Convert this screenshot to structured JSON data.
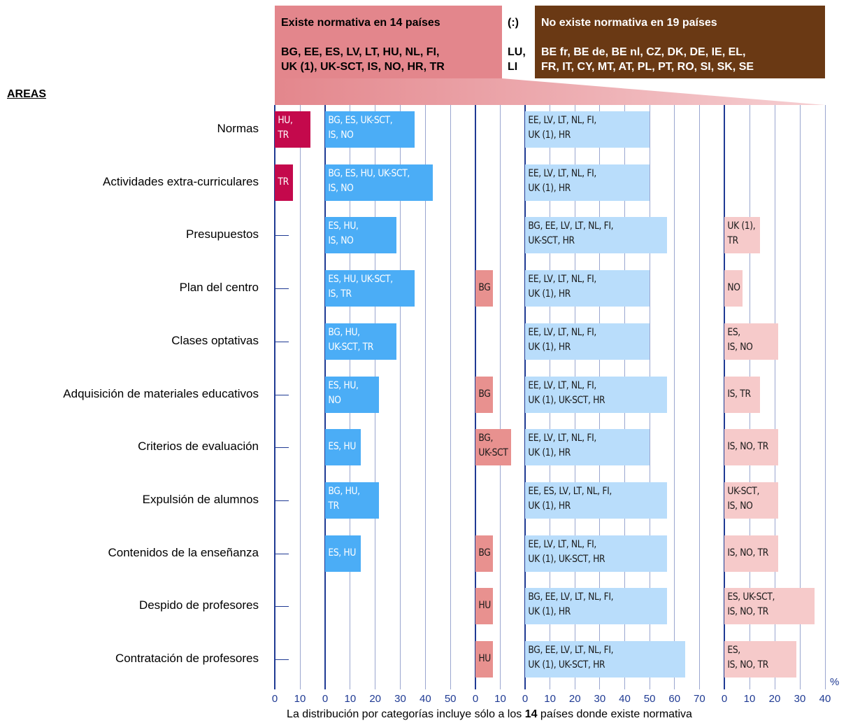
{
  "chart_data": {
    "type": "bar",
    "header": {
      "exists_title": "Existe normativa en 14 países",
      "exists_countries": "BG, EE, ES, LV, LT, HU, NL, FI,\nUK (1), UK-SCT, IS, NO, HR, TR",
      "missing_title": "(:)",
      "missing_countries": "LU,\nLI",
      "not_exists_title": "No existe normativa en 19 países",
      "not_exists_countries": "BE fr, BE de, BE nl, CZ, DK, DE, IE, EL,\nFR, IT, CY, MT, AT, PL, PT, RO, SI, SK, SE"
    },
    "axis_title": "AREAS",
    "unit": "%",
    "categories": [
      "Normas",
      "Actividades extra-curriculares",
      "Presupuestos",
      "Plan del centro",
      "Clases optativas",
      "Adquisición de materiales educativos",
      "Criterios de evaluación",
      "Expulsión de alumnos",
      "Contenidos de la enseñanza",
      "Despido de profesores",
      "Contratación de profesores"
    ],
    "panels": [
      {
        "color": "#c4094c",
        "text_color": "#ffffff",
        "xlim": [
          0,
          20
        ],
        "xticks": [
          0,
          10
        ],
        "values": [
          14.3,
          7.1,
          null,
          null,
          null,
          null,
          null,
          null,
          null,
          null,
          null
        ],
        "labels": [
          "HU,\nTR",
          "TR",
          null,
          null,
          null,
          null,
          null,
          null,
          null,
          null,
          null
        ]
      },
      {
        "color": "#4badf6",
        "text_color": "#ffffff",
        "xlim": [
          0,
          60
        ],
        "xticks": [
          0,
          10,
          20,
          30,
          40,
          50
        ],
        "values": [
          35.7,
          42.9,
          28.6,
          35.7,
          28.6,
          21.4,
          14.3,
          21.4,
          14.3,
          null,
          null
        ],
        "labels": [
          "BG, ES, UK-SCT,\nIS, NO",
          "BG, ES, HU, UK-SCT,\nIS, NO",
          "ES, HU,\nIS, NO",
          "ES, HU, UK-SCT,\nIS, TR",
          "BG, HU,\nUK-SCT, TR",
          "ES, HU,\nNO",
          "ES, HU",
          "BG, HU,\nTR",
          "ES, HU",
          null,
          null
        ]
      },
      {
        "color": "#e8918f",
        "text_color": "#1a1a1a",
        "xlim": [
          0,
          20
        ],
        "xticks": [
          0,
          10
        ],
        "values": [
          null,
          null,
          null,
          7.1,
          null,
          7.1,
          14.3,
          null,
          7.1,
          7.1,
          7.1
        ],
        "labels": [
          null,
          null,
          null,
          "BG",
          null,
          "BG",
          "BG,\nUK-SCT",
          null,
          "BG",
          "HU",
          "HU"
        ]
      },
      {
        "color": "#b9ddfb",
        "text_color": "#1a1a1a",
        "xlim": [
          0,
          80
        ],
        "xticks": [
          0,
          10,
          20,
          30,
          40,
          50,
          60,
          70
        ],
        "values": [
          50,
          50,
          57.1,
          50,
          50,
          57.1,
          50,
          57.1,
          57.1,
          57.1,
          64.3
        ],
        "labels": [
          "EE, LV, LT, NL, FI,\nUK (1), HR",
          "EE, LV, LT, NL, FI,\nUK (1), HR",
          "BG, EE, LV, LT, NL, FI,\nUK-SCT, HR",
          "EE, LV, LT, NL, FI,\nUK (1), HR",
          "EE, LV, LT, NL, FI,\nUK (1), HR",
          "EE, LV, LT, NL, FI,\nUK (1), UK-SCT, HR",
          "EE, LV, LT, NL, FI,\nUK (1), HR",
          "EE, ES, LV, LT, NL, FI,\nUK (1), HR",
          "EE, LV, LT, NL, FI,\nUK (1), UK-SCT, HR",
          "BG, EE, LV, LT, NL, FI,\nUK (1), HR",
          "BG, EE, LV, LT, NL, FI,\nUK (1), UK-SCT, HR"
        ]
      },
      {
        "color": "#f6caca",
        "text_color": "#1a1a1a",
        "xlim": [
          0,
          40
        ],
        "xticks": [
          0,
          10,
          20,
          30,
          40
        ],
        "values": [
          null,
          null,
          14.3,
          7.1,
          21.4,
          14.3,
          21.4,
          21.4,
          21.4,
          35.7,
          28.6
        ],
        "labels": [
          null,
          null,
          "UK (1),\nTR",
          "NO",
          "ES,\nIS, NO",
          "IS, TR",
          "IS, NO, TR",
          "UK-SCT,\nIS, NO",
          "IS, NO, TR",
          "ES, UK-SCT,\nIS, NO, TR",
          "ES,\nIS, NO, TR"
        ]
      }
    ],
    "footnote": [
      "La distribución por categorías incluye sólo a los ",
      "14",
      " países donde existe normativa"
    ]
  }
}
